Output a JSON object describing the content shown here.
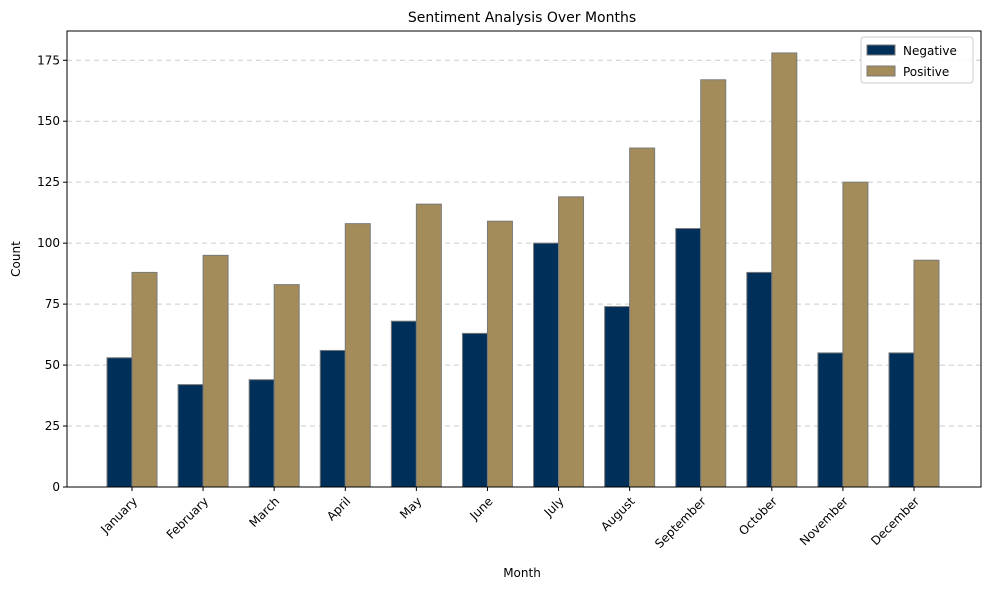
{
  "chart_data": {
    "type": "bar",
    "title": "Sentiment Analysis Over Months",
    "xlabel": "Month",
    "ylabel": "Count",
    "categories": [
      "January",
      "February",
      "March",
      "April",
      "May",
      "June",
      "July",
      "August",
      "September",
      "October",
      "November",
      "December"
    ],
    "series": [
      {
        "name": "Negative",
        "color": "#002f5a",
        "values": [
          53,
          42,
          44,
          56,
          68,
          63,
          100,
          74,
          106,
          88,
          55,
          55
        ]
      },
      {
        "name": "Positive",
        "color": "#a38c5a",
        "values": [
          88,
          95,
          83,
          108,
          116,
          109,
          119,
          139,
          167,
          178,
          125,
          93
        ]
      }
    ],
    "ylim": [
      0,
      187
    ],
    "yticks": [
      0,
      25,
      50,
      75,
      100,
      125,
      150,
      175
    ],
    "grid": "y-dashed",
    "legend": "top-right"
  }
}
